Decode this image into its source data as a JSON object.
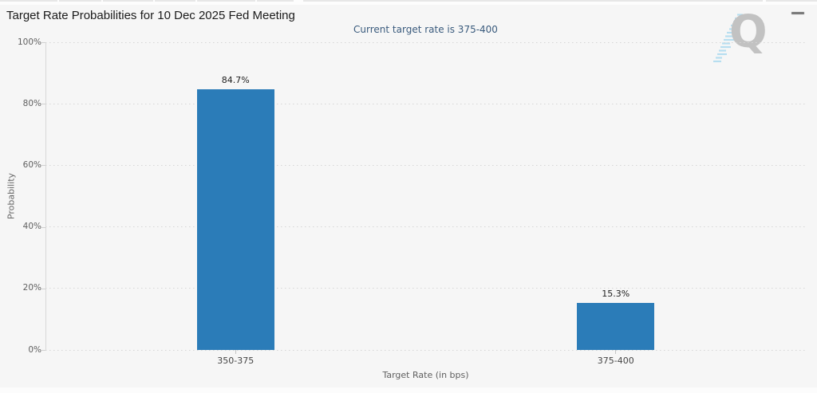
{
  "header": {
    "title": "Target Rate Probabilities for 10 Dec 2025 Fed Meeting",
    "menu_icon": "hamburger-icon"
  },
  "chart_data": {
    "type": "bar",
    "title": "Target Rate Probabilities for 10 Dec 2025 Fed Meeting",
    "subtitle": "Current target rate is 375-400",
    "categories": [
      "350-375",
      "375-400"
    ],
    "values": [
      84.7,
      15.3
    ],
    "data_labels": [
      "84.7%",
      "15.3%"
    ],
    "xlabel": "Target Rate (in bps)",
    "ylabel": "Probability",
    "ylim": [
      0,
      100
    ],
    "ytick_labels": [
      "0%",
      "20%",
      "40%",
      "60%",
      "80%",
      "100%"
    ],
    "grid": "horizontal-dotted",
    "legend": "none",
    "bar_color": "#2b7cb8"
  },
  "watermark": {
    "letter": "Q"
  },
  "colors": {
    "bar": "#2b7cb8",
    "subtitle_text": "#3a5b7d",
    "chart_background": "#f6f6f6",
    "gridline": "#d6d6d6",
    "axis_text": "#5f5f5f",
    "watermark_gray": "#bdbdbd",
    "watermark_blue": "#a5d7ef"
  }
}
